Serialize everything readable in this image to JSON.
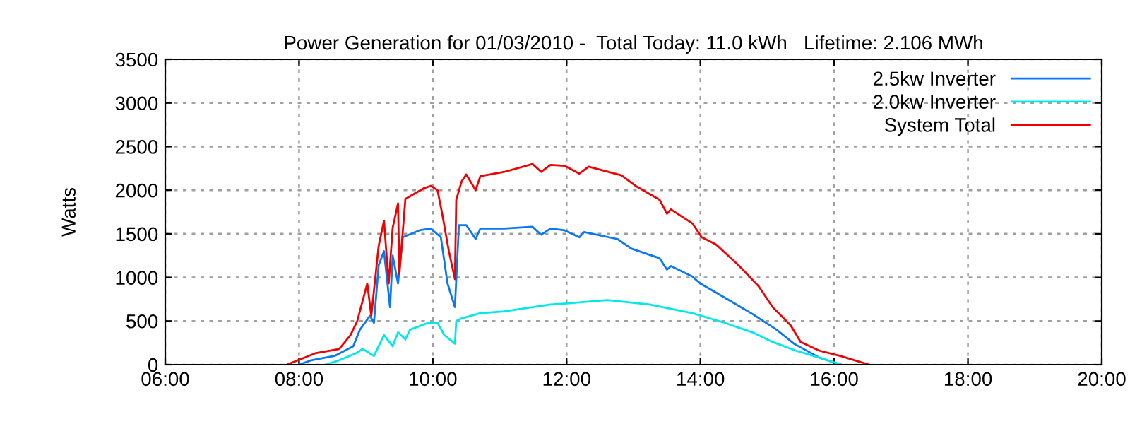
{
  "chart_data": {
    "type": "line",
    "title": "Power Generation for 01/03/2010 -  Total Today: 11.0 kWh   Lifetime: 2.106 MWh",
    "ylabel": "Watts",
    "series": [
      {
        "name": "2.5kw Inverter",
        "color": "#0a78f0",
        "x": [
          8.0,
          8.18,
          8.53,
          8.81,
          8.91,
          9.06,
          9.12,
          9.19,
          9.27,
          9.36,
          9.4,
          9.48,
          9.55,
          9.8,
          9.97,
          10.12,
          10.22,
          10.33,
          10.39,
          10.5,
          10.64,
          10.71,
          11.07,
          11.49,
          11.62,
          11.76,
          11.97,
          12.19,
          12.26,
          12.76,
          12.97,
          13.39,
          13.5,
          13.56,
          13.88,
          14.0,
          14.36,
          14.78,
          15.14,
          15.4,
          15.78,
          16.1
        ],
        "values": [
          0,
          50,
          100,
          210,
          400,
          560,
          480,
          1140,
          1300,
          660,
          1250,
          930,
          1460,
          1540,
          1560,
          1460,
          930,
          660,
          1600,
          1600,
          1440,
          1560,
          1560,
          1580,
          1490,
          1560,
          1540,
          1460,
          1520,
          1440,
          1330,
          1220,
          1090,
          1130,
          1010,
          930,
          770,
          580,
          400,
          240,
          80,
          0
        ]
      },
      {
        "name": "2.0kw Inverter",
        "color": "#00e8e8",
        "x": [
          8.4,
          8.6,
          8.85,
          8.95,
          9.12,
          9.27,
          9.4,
          9.48,
          9.59,
          9.66,
          9.93,
          10.07,
          10.17,
          10.33,
          10.35,
          10.43,
          10.71,
          11.07,
          11.76,
          11.97,
          12.61,
          13.24,
          13.88,
          14.36,
          14.78,
          15.08,
          15.43,
          15.78,
          16.1
        ],
        "values": [
          0,
          50,
          130,
          180,
          100,
          340,
          210,
          370,
          290,
          400,
          480,
          480,
          340,
          240,
          500,
          530,
          590,
          610,
          690,
          700,
          740,
          690,
          590,
          480,
          370,
          260,
          160,
          80,
          0
        ]
      },
      {
        "name": "System Total",
        "color": "#f00000",
        "x": [
          7.82,
          8.24,
          8.6,
          8.77,
          8.87,
          9.02,
          9.08,
          9.19,
          9.27,
          9.34,
          9.4,
          9.48,
          9.5,
          9.59,
          9.86,
          9.97,
          10.07,
          10.14,
          10.24,
          10.33,
          10.35,
          10.43,
          10.5,
          10.64,
          10.71,
          11.07,
          11.49,
          11.62,
          11.76,
          11.97,
          12.19,
          12.33,
          12.82,
          13.03,
          13.39,
          13.5,
          13.56,
          13.88,
          14.02,
          14.23,
          14.57,
          14.87,
          15.08,
          15.35,
          15.5,
          15.78,
          16.09,
          16.52
        ],
        "values": [
          0,
          130,
          180,
          340,
          500,
          930,
          560,
          1360,
          1650,
          930,
          1570,
          1850,
          1040,
          1900,
          2020,
          2050,
          2000,
          1730,
          1300,
          980,
          1890,
          2100,
          2180,
          2000,
          2160,
          2210,
          2300,
          2210,
          2290,
          2280,
          2190,
          2270,
          2170,
          2050,
          1890,
          1730,
          1780,
          1620,
          1460,
          1380,
          1140,
          900,
          660,
          450,
          260,
          160,
          100,
          0
        ]
      }
    ],
    "xlim": [
      6,
      20
    ],
    "xticks": [
      {
        "value": 6,
        "label": "06:00"
      },
      {
        "value": 8,
        "label": "08:00"
      },
      {
        "value": 10,
        "label": "10:00"
      },
      {
        "value": 12,
        "label": "12:00"
      },
      {
        "value": 14,
        "label": "14:00"
      },
      {
        "value": 16,
        "label": "16:00"
      },
      {
        "value": 18,
        "label": "18:00"
      },
      {
        "value": 20,
        "label": "20:00"
      }
    ],
    "ylim": [
      0,
      3500
    ],
    "yticks": [
      0,
      500,
      1000,
      1500,
      2000,
      2500,
      3000,
      3500
    ],
    "grid": true,
    "legend": "top right",
    "line_style": "solid"
  }
}
